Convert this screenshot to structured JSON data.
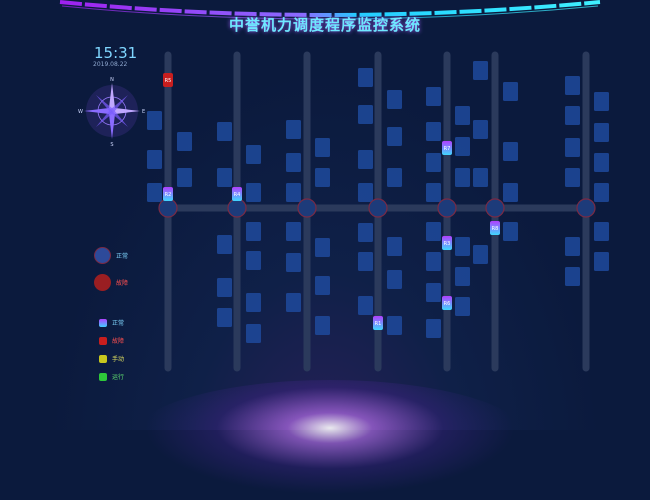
{
  "header": {
    "title": "中誉机力调度程序监控系统"
  },
  "clock": {
    "time": "15:31",
    "date": "2019.08.22"
  },
  "compass": {
    "n": "N",
    "s": "S",
    "e": "E",
    "w": "W"
  },
  "legend": {
    "nodes": [
      {
        "label": "正常",
        "color": "#2d4a9a"
      },
      {
        "label": "故障",
        "color": "#9a1e22"
      }
    ],
    "robots": [
      {
        "label": "正常",
        "color": "#8a5cff"
      },
      {
        "label": "故障",
        "color": "#c81e1e"
      },
      {
        "label": "手动",
        "color": "#c8c81e"
      },
      {
        "label": "运行",
        "color": "#2ec83a"
      }
    ]
  },
  "robots": [
    {
      "id": "R5",
      "status": "fault"
    },
    {
      "id": "R2",
      "status": "normal"
    },
    {
      "id": "R4",
      "status": "normal"
    },
    {
      "id": "R7",
      "status": "normal"
    },
    {
      "id": "R3",
      "status": "normal"
    },
    {
      "id": "R8",
      "status": "normal"
    },
    {
      "id": "R6",
      "status": "normal"
    },
    {
      "id": "R1",
      "status": "normal"
    }
  ],
  "colors": {
    "background": "#0b1a3d",
    "rail": "#2b3a5c",
    "shelf": "#1f4a9c",
    "node": "#1d3b7a",
    "node_border": "#7a2a44"
  }
}
